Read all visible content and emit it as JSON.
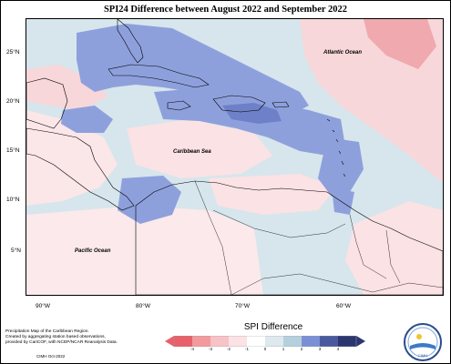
{
  "title": "SPI24 Difference between August 2022 and September 2022",
  "map": {
    "region": "Caribbean Region",
    "latitude_labels": [
      "25°N",
      "20°N",
      "15°N",
      "10°N",
      "5°N"
    ],
    "longitude_labels": [
      "90°W",
      "80°W",
      "70°W",
      "60°W"
    ],
    "place_labels": {
      "atlantic": "Atlantic Ocean",
      "caribbean": "Caribbean Sea",
      "pacific": "Pacific Ocean"
    }
  },
  "legend": {
    "title": "SPI Difference",
    "ticks": [
      "-4",
      "-3",
      "-2",
      "-1",
      "0",
      "1",
      "2",
      "3",
      "4"
    ],
    "colors": [
      "#e8606b",
      "#f29a9e",
      "#f7c3c6",
      "#fbe2e4",
      "#ffffff",
      "#dde9ee",
      "#b5d0dc",
      "#7b8fd6",
      "#4b5a9e",
      "#2c3770"
    ]
  },
  "footer": {
    "line1": "Precipitation Map of the Caribbean Region.",
    "line2": "Created by aggregating station based observations,",
    "line3": "provided by CariCOF, with NCEP/NCAR Reanalysis Data.",
    "date": "CIMH Oct-2022"
  },
  "logo": {
    "label": "CIMH"
  }
}
